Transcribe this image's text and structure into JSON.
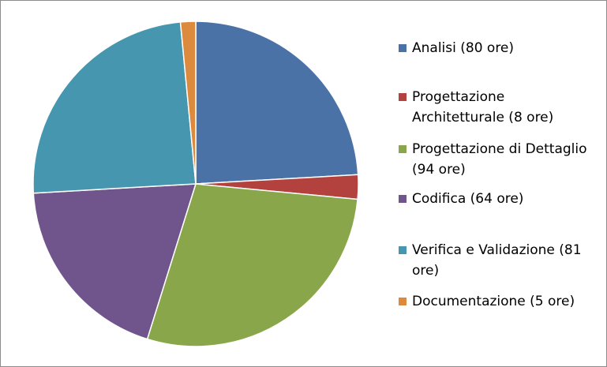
{
  "chart_data": {
    "type": "pie",
    "categories": [
      "Analisi (80 ore)",
      "Progettazione Architetturale (8 ore)",
      "Progettazione di Dettaglio (94 ore)",
      "Codifica (64 ore)",
      "Verifica e Validazione (81 ore)",
      "Documentazione (5 ore)"
    ],
    "values": [
      80,
      8,
      94,
      64,
      81,
      5
    ],
    "colors": [
      "#4a72a7",
      "#b3423f",
      "#8aa64b",
      "#6f558c",
      "#4596ae",
      "#dc8a3e"
    ],
    "legend_position": "right",
    "start_angle": "12 o'clock",
    "direction": "clockwise"
  }
}
